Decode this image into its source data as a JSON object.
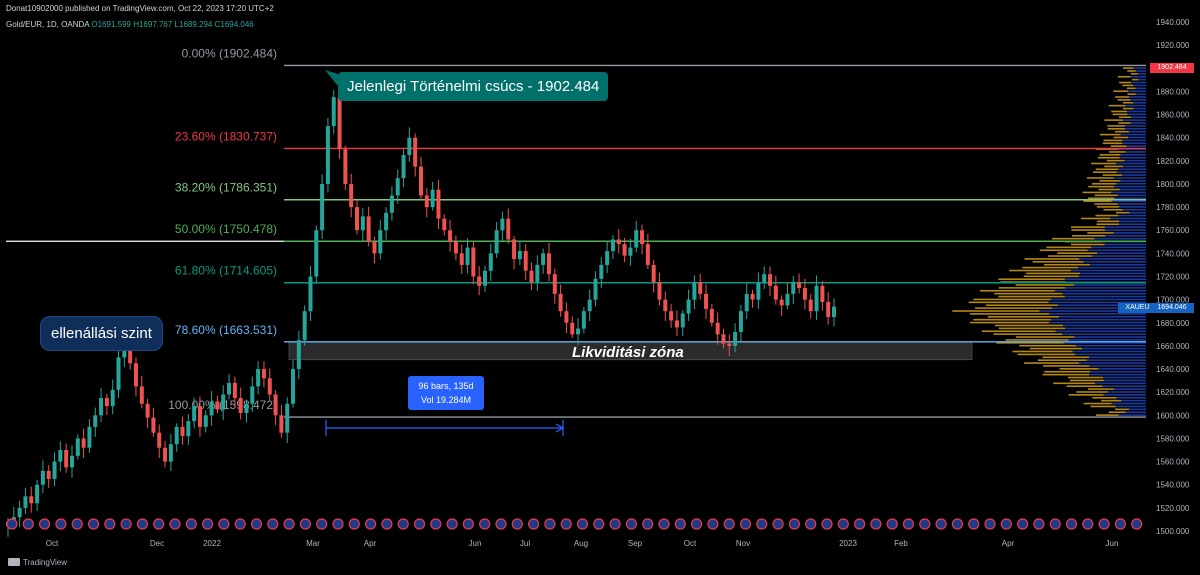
{
  "header": {
    "published": "Donat10902000 published on TradingView.com, Oct 22, 2023 17:20 UTC+2"
  },
  "symbol": {
    "name": "Gold/EUR, 1D, OANDA",
    "ohlc": "O1691.599 H1697.767 L1689.294 C1694.046"
  },
  "footer": {
    "brand": "TradingView"
  },
  "colors": {
    "up": "#26a69a",
    "down": "#ef5350",
    "fib_0": "#9598a1",
    "fib_236": "#f23645",
    "fib_382": "#81c784",
    "fib_50": "#4caf50",
    "fib_618": "#089981",
    "fib_786": "#64b5f6",
    "fib_100": "#9598a1",
    "volume_profile_up": "#1e40af",
    "volume_profile_down": "#d4a017"
  },
  "callouts": {
    "ath": "Jelenlegi Történelmi csúcs - 1902.484",
    "resistance": "ellenállási szint",
    "liquidity": "Likviditási zóna",
    "range_line1": "96 bars, 135d",
    "range_line2": "Vol 19.284M"
  },
  "price_tags": {
    "symbol": "XAUEUR",
    "last": "1694.046",
    "ath": "1902.484"
  },
  "chart_data": {
    "type": "candlestick",
    "symbol": "Gold/EUR",
    "interval": "1D",
    "exchange": "OANDA",
    "last_close": 1694.046,
    "all_time_high": 1902.484,
    "price_axis": {
      "ticks": [
        "1940.000",
        "1920.000",
        "1900.000",
        "1880.000",
        "1860.000",
        "1840.000",
        "1820.000",
        "1800.000",
        "1780.000",
        "1760.000",
        "1740.000",
        "1720.000",
        "1700.000",
        "1680.000",
        "1660.000",
        "1640.000",
        "1620.000",
        "1600.000",
        "1580.000",
        "1560.000",
        "1540.000",
        "1520.000",
        "1500.000"
      ]
    },
    "time_axis": {
      "ticks": [
        "Oct",
        "Dec",
        "2022",
        "Mar",
        "Apr",
        "Jun",
        "Jul",
        "Aug",
        "Sep",
        "Oct",
        "Nov",
        "2023",
        "Feb",
        "Apr",
        "Jun"
      ]
    },
    "fib_levels": [
      {
        "label": "0.00% (1902.484)",
        "ratio": 0.0,
        "price": 1902.484,
        "color_key": "fib_0"
      },
      {
        "label": "23.60% (1830.737)",
        "ratio": 0.236,
        "price": 1830.737,
        "color_key": "fib_236"
      },
      {
        "label": "38.20% (1786.351)",
        "ratio": 0.382,
        "price": 1786.351,
        "color_key": "fib_382"
      },
      {
        "label": "50.00% (1750.478)",
        "ratio": 0.5,
        "price": 1750.478,
        "color_key": "fib_50"
      },
      {
        "label": "61.80% (1714.605)",
        "ratio": 0.618,
        "price": 1714.605,
        "color_key": "fib_618"
      },
      {
        "label": "78.60% (1663.531)",
        "ratio": 0.786,
        "price": 1663.531,
        "color_key": "fib_786"
      },
      {
        "label": "100.00% (1598.472)",
        "ratio": 1.0,
        "price": 1598.472,
        "color_key": "fib_100"
      }
    ],
    "horizontal_lines": [
      {
        "price": 1750.5,
        "color": "#ffffff"
      }
    ],
    "liquidity_zone": {
      "price_low": 1648,
      "price_high": 1663.531
    },
    "series": [
      {
        "name": "Gold/EUR",
        "close": [
          1508,
          1512,
          1520,
          1530,
          1524,
          1540,
          1552,
          1545,
          1560,
          1570,
          1555,
          1565,
          1580,
          1572,
          1590,
          1600,
          1615,
          1608,
          1622,
          1650,
          1660,
          1645,
          1625,
          1610,
          1598,
          1585,
          1572,
          1560,
          1575,
          1590,
          1582,
          1595,
          1608,
          1590,
          1600,
          1612,
          1605,
          1618,
          1628,
          1615,
          1602,
          1610,
          1625,
          1640,
          1632,
          1618,
          1600,
          1585,
          1610,
          1640,
          1665,
          1690,
          1720,
          1760,
          1800,
          1850,
          1875,
          1830,
          1800,
          1780,
          1760,
          1772,
          1750,
          1740,
          1760,
          1775,
          1790,
          1805,
          1825,
          1840,
          1815,
          1790,
          1780,
          1795,
          1770,
          1760,
          1750,
          1740,
          1730,
          1745,
          1720,
          1712,
          1725,
          1740,
          1760,
          1770,
          1752,
          1735,
          1742,
          1725,
          1715,
          1730,
          1740,
          1722,
          1705,
          1690,
          1680,
          1670,
          1675,
          1690,
          1700,
          1718,
          1730,
          1742,
          1752,
          1748,
          1738,
          1745,
          1760,
          1748,
          1730,
          1715,
          1700,
          1690,
          1682,
          1676,
          1688,
          1700,
          1715,
          1705,
          1692,
          1680,
          1670,
          1662,
          1660,
          1672,
          1690,
          1705,
          1700,
          1715,
          1722,
          1712,
          1700,
          1695,
          1705,
          1715,
          1710,
          1700,
          1690,
          1712,
          1698,
          1685,
          1694
        ]
      }
    ]
  }
}
